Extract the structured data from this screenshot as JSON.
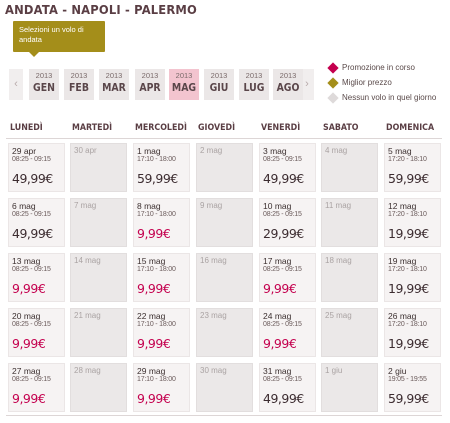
{
  "header": {
    "route_title": "ANDATA - NAPOLI - PALERMO",
    "tooltip": "Selezioni un volo di andata"
  },
  "nav": {
    "prev_icon": "‹",
    "next_icon": "›",
    "months": [
      {
        "year": "2013",
        "label": "GEN",
        "selected": false
      },
      {
        "year": "2013",
        "label": "FEB",
        "selected": false
      },
      {
        "year": "2013",
        "label": "MAR",
        "selected": false
      },
      {
        "year": "2013",
        "label": "APR",
        "selected": false
      },
      {
        "year": "2013",
        "label": "MAG",
        "selected": true
      },
      {
        "year": "2013",
        "label": "GIU",
        "selected": false
      },
      {
        "year": "2013",
        "label": "LUG",
        "selected": false
      },
      {
        "year": "2013",
        "label": "AGO",
        "selected": false
      }
    ]
  },
  "legend": [
    {
      "label": "Promozione in corso",
      "marker": "promo",
      "color": "#c4004e"
    },
    {
      "label": "Miglior prezzo",
      "marker": "best",
      "color": "#a48e1a"
    },
    {
      "label": "Nessun volo in quel giorno",
      "marker": "none",
      "color": "#dedada"
    }
  ],
  "days": [
    "LUNEDÌ",
    "MARTEDÌ",
    "MERCOLEDÌ",
    "GIOVEDÌ",
    "VENERDÌ",
    "SABATO",
    "DOMENICA"
  ],
  "weeks": [
    [
      {
        "date": "29 apr",
        "time": "08:25 - 09:15",
        "price": "49,99€",
        "promo": false
      },
      {
        "date": "30 apr",
        "empty": true
      },
      {
        "date": "1 mag",
        "time": "17:10 - 18:00",
        "price": "59,99€",
        "promo": false
      },
      {
        "date": "2 mag",
        "empty": true
      },
      {
        "date": "3 mag",
        "time": "08:25 - 09:15",
        "price": "49,99€",
        "promo": false
      },
      {
        "date": "4 mag",
        "empty": true
      },
      {
        "date": "5 mag",
        "time": "17:20 - 18:10",
        "price": "59,99€",
        "promo": false
      }
    ],
    [
      {
        "date": "6 mag",
        "time": "08:25 - 09:15",
        "price": "49,99€",
        "promo": false
      },
      {
        "date": "7 mag",
        "empty": true
      },
      {
        "date": "8 mag",
        "time": "17:10 - 18:00",
        "price": "9,99€",
        "promo": true
      },
      {
        "date": "9 mag",
        "empty": true
      },
      {
        "date": "10 mag",
        "time": "08:25 - 09:15",
        "price": "29,99€",
        "promo": false
      },
      {
        "date": "11 mag",
        "empty": true
      },
      {
        "date": "12 mag",
        "time": "17:20 - 18:10",
        "price": "19,99€",
        "promo": false
      }
    ],
    [
      {
        "date": "13 mag",
        "time": "08:25 - 09:15",
        "price": "9,99€",
        "promo": true
      },
      {
        "date": "14 mag",
        "empty": true
      },
      {
        "date": "15 mag",
        "time": "17:10 - 18:00",
        "price": "9,99€",
        "promo": true
      },
      {
        "date": "16 mag",
        "empty": true
      },
      {
        "date": "17 mag",
        "time": "08:25 - 09:15",
        "price": "9,99€",
        "promo": true
      },
      {
        "date": "18 mag",
        "empty": true
      },
      {
        "date": "19 mag",
        "time": "17:20 - 18:10",
        "price": "19,99€",
        "promo": false
      }
    ],
    [
      {
        "date": "20 mag",
        "time": "08:25 - 09:15",
        "price": "9,99€",
        "promo": true
      },
      {
        "date": "21 mag",
        "empty": true
      },
      {
        "date": "22 mag",
        "time": "17:10 - 18:00",
        "price": "9,99€",
        "promo": true
      },
      {
        "date": "23 mag",
        "empty": true
      },
      {
        "date": "24 mag",
        "time": "08:25 - 09:15",
        "price": "9,99€",
        "promo": true
      },
      {
        "date": "25 mag",
        "empty": true
      },
      {
        "date": "26 mag",
        "time": "17:20 - 18:10",
        "price": "19,99€",
        "promo": false
      }
    ],
    [
      {
        "date": "27 mag",
        "time": "08:25 - 09:15",
        "price": "9,99€",
        "promo": true
      },
      {
        "date": "28 mag",
        "empty": true
      },
      {
        "date": "29 mag",
        "time": "17:10 - 18:00",
        "price": "9,99€",
        "promo": true
      },
      {
        "date": "30 mag",
        "empty": true
      },
      {
        "date": "31 mag",
        "time": "08:25 - 09:15",
        "price": "49,99€",
        "promo": false
      },
      {
        "date": "1 giu",
        "empty": true
      },
      {
        "date": "2 giu",
        "time": "19:05 - 19:55",
        "price": "59,99€",
        "promo": false
      }
    ]
  ]
}
